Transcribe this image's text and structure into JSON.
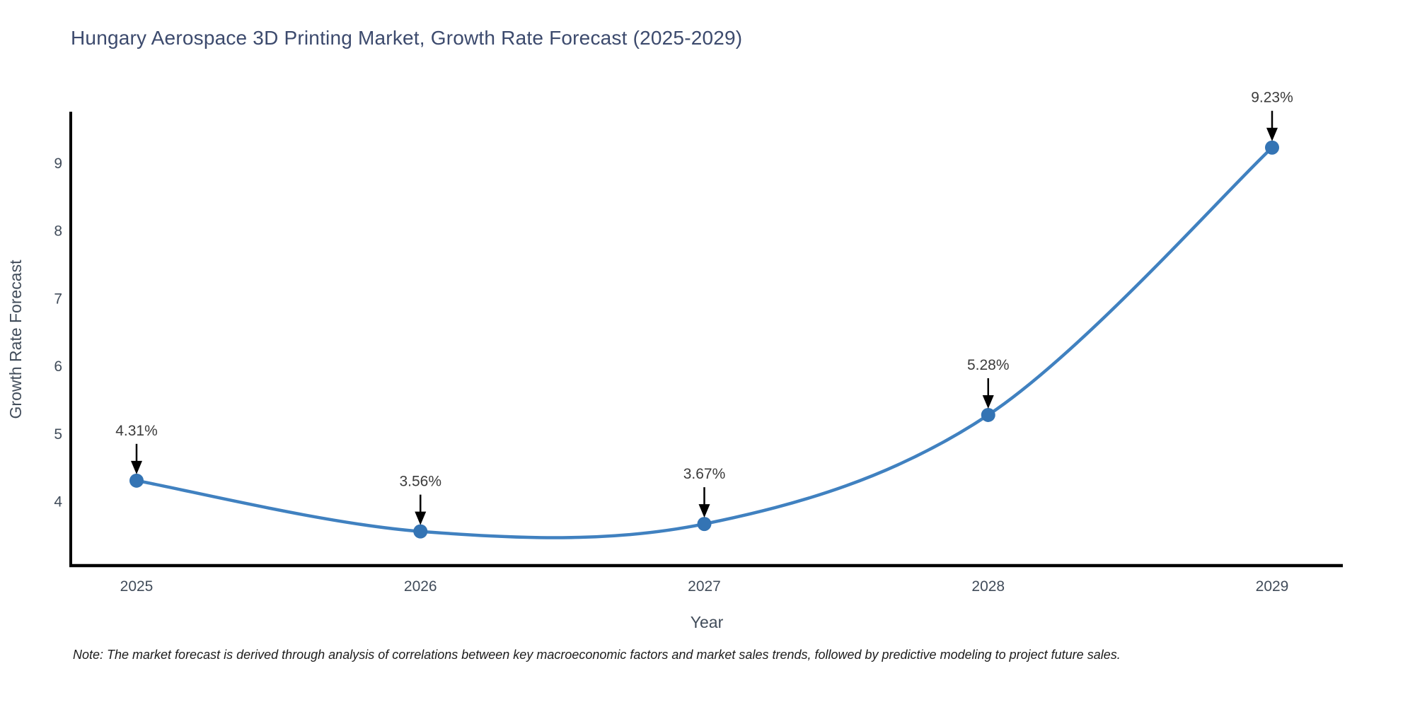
{
  "note": {
    "text": "Note: The market forecast is derived through analysis of correlations between key macroeconomic factors and market sales trends, followed by predictive modeling to project future sales."
  },
  "chart_data": {
    "type": "line",
    "title": "Hungary Aerospace 3D Printing Market, Growth Rate Forecast (2025-2029)",
    "xlabel": "Year",
    "ylabel": "Growth Rate Forecast",
    "x": [
      2025,
      2026,
      2027,
      2028,
      2029
    ],
    "y": [
      4.31,
      3.56,
      3.67,
      5.28,
      9.23
    ],
    "point_labels": [
      "4.31%",
      "3.56%",
      "3.67%",
      "5.28%",
      "9.23%"
    ],
    "yticks": [
      4,
      5,
      6,
      7,
      8,
      9
    ],
    "ylim": [
      3.05,
      9.78
    ],
    "grid": false,
    "legend": "none",
    "smooth": true,
    "colors": {
      "line": "#4081c0",
      "marker": "#3474b4",
      "annotation_text": "#3b3b3b",
      "annotation_arrow": "#000000",
      "axis_spine": "#000000",
      "tick_label": "#414c5a",
      "axis_title": "#414c5a",
      "chart_title": "#3c4a6d"
    }
  }
}
